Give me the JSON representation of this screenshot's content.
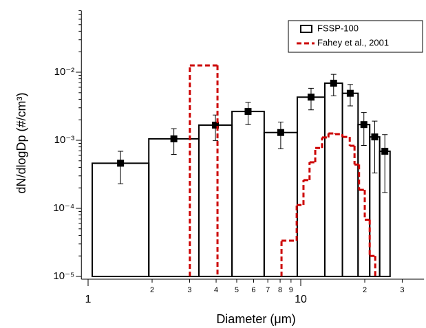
{
  "chart_data": {
    "type": "histogram",
    "xlabel": "Diameter (μm)",
    "ylabel": "dN/dlogDp (#/cm³)",
    "xscale": "log",
    "yscale": "log",
    "xlim": [
      0.93,
      38
    ],
    "ylim": [
      1e-05,
      0.08
    ],
    "xticks": [
      1,
      2,
      3,
      4,
      5,
      6,
      7,
      8,
      9,
      10,
      {
        "value": 20,
        "label": "2"
      },
      {
        "value": 30,
        "label": "3"
      }
    ],
    "yticks": [
      {
        "value": 1e-05,
        "label": "10⁻⁵"
      },
      {
        "value": 0.0001,
        "label": "10⁻⁴"
      },
      {
        "value": 0.001,
        "label": "10⁻³"
      },
      {
        "value": 0.01,
        "label": "10⁻²"
      }
    ],
    "yminorticks": [
      2e-05,
      3e-05,
      4e-05,
      5e-05,
      6e-05,
      7e-05,
      8e-05,
      9e-05,
      0.0002,
      0.0003,
      0.0004,
      0.0005,
      0.0006,
      0.0007,
      0.0008,
      0.0009,
      0.002,
      0.003,
      0.004,
      0.005,
      0.006,
      0.007,
      0.008,
      0.009,
      0.02,
      0.03,
      0.04,
      0.05,
      0.06,
      0.07,
      0.08
    ],
    "legend": "upper right",
    "series": [
      {
        "name": "FSSP-100",
        "type": "bar",
        "color": "#000000",
        "bins": [
          1.046,
          1.93,
          3.32,
          4.75,
          6.73,
          9.63,
          12.98,
          15.7,
          18.6,
          21.1,
          23.5,
          26.3
        ],
        "values": [
          0.00046,
          0.00105,
          0.00167,
          0.00265,
          0.0013,
          0.0043,
          0.0069,
          0.0049,
          0.0017,
          0.00112,
          0.00069
        ],
        "errors": [
          0.00023,
          0.00043,
          0.00068,
          0.00095,
          0.00055,
          0.0015,
          0.0024,
          0.0017,
          0.00086,
          0.00079,
          0.00052
        ]
      },
      {
        "name": "Fahey et al., 2001",
        "type": "step",
        "color": "#cc0000",
        "style": "dashed",
        "bins": [
          3.01,
          4.06,
          8.12,
          9.57,
          10.3,
          11.0,
          11.7,
          12.6,
          13.5,
          14.5,
          15.7,
          17.0,
          17.9,
          18.8,
          20.0,
          21.1,
          22.4
        ],
        "values": [
          0.0126,
          null,
          3.35e-05,
          0.000112,
          0.00026,
          0.000475,
          0.00077,
          0.0011,
          0.00126,
          0.00123,
          0.00112,
          0.00083,
          0.00044,
          0.000187,
          6.8e-05,
          2e-05
        ]
      }
    ]
  }
}
